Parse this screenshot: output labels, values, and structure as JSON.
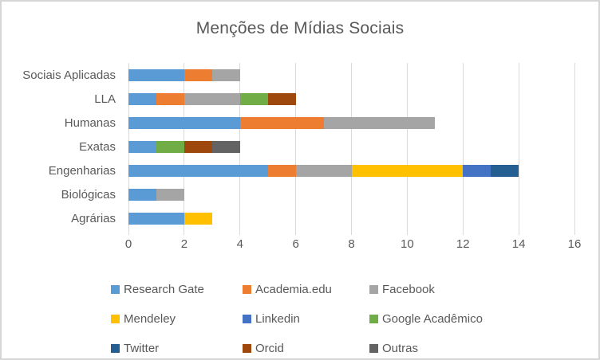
{
  "window": {
    "background": "#FFFFFF",
    "border_color": "#D6D6D6",
    "text_color": "#595959",
    "gridline_color": "#D9D9D9"
  },
  "chart_data": {
    "type": "bar",
    "orientation": "horizontal",
    "stacked": true,
    "title": "Menções de Mídias Sociais",
    "categories": [
      "Sociais Aplicadas",
      "LLA",
      "Humanas",
      "Exatas",
      "Engenharias",
      "Biológicas",
      "Agrárias"
    ],
    "series": [
      {
        "name": "Research Gate",
        "color": "#5B9BD5",
        "values": [
          2,
          1,
          4,
          1,
          5,
          1,
          2
        ]
      },
      {
        "name": "Academia.edu",
        "color": "#ED7D31",
        "values": [
          1,
          1,
          3,
          0,
          1,
          0,
          0
        ]
      },
      {
        "name": "Facebook",
        "color": "#A5A5A5",
        "values": [
          1,
          2,
          4,
          0,
          2,
          1,
          0
        ]
      },
      {
        "name": "Mendeley",
        "color": "#FFC000",
        "values": [
          0,
          0,
          0,
          0,
          4,
          0,
          1
        ]
      },
      {
        "name": "Linkedin",
        "color": "#4472C4",
        "values": [
          0,
          0,
          0,
          0,
          1,
          0,
          0
        ]
      },
      {
        "name": "Google Acadêmico",
        "color": "#70AD47",
        "values": [
          0,
          1,
          0,
          1,
          0,
          0,
          0
        ]
      },
      {
        "name": "Twitter",
        "color": "#255E91",
        "values": [
          0,
          0,
          0,
          0,
          1,
          0,
          0
        ]
      },
      {
        "name": "Orcid",
        "color": "#9E480E",
        "values": [
          0,
          1,
          0,
          1,
          0,
          0,
          0
        ]
      },
      {
        "name": "Outras",
        "color": "#636363",
        "values": [
          0,
          0,
          0,
          1,
          0,
          0,
          0
        ]
      }
    ],
    "totals": {
      "Sociais Aplicadas": 4,
      "LLA": 6,
      "Humanas": 11,
      "Exatas": 4,
      "Engenharias": 14,
      "Biológicas": 2,
      "Agrárias": 3
    },
    "xlim": [
      0,
      16
    ],
    "x_ticks": [
      0,
      2,
      4,
      6,
      8,
      10,
      12,
      14,
      16
    ],
    "grid": true,
    "legend_position": "bottom",
    "legend_rows": [
      [
        "Research Gate",
        "Academia.edu",
        "Facebook"
      ],
      [
        "Mendeley",
        "Linkedin",
        "Google Acadêmico"
      ],
      [
        "Twitter",
        "Orcid",
        "Outras"
      ]
    ]
  }
}
